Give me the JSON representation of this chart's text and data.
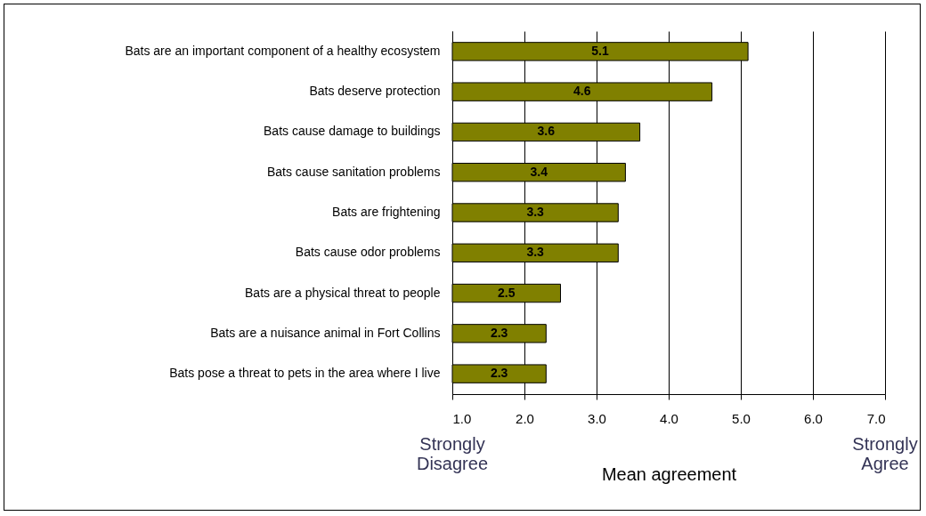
{
  "chart_data": {
    "type": "bar",
    "orientation": "horizontal",
    "xlabel": "Mean agreement",
    "categories": [
      "Bats are an important component of a healthy ecosystem",
      "Bats deserve protection",
      "Bats cause damage to buildings",
      "Bats cause sanitation problems",
      "Bats are frightening",
      "Bats cause odor problems",
      "Bats are a physical threat to people",
      "Bats are a nuisance animal in Fort Collins",
      "Bats pose a threat to pets in the area where I live"
    ],
    "values": [
      5.1,
      4.6,
      3.6,
      3.4,
      3.3,
      3.3,
      2.5,
      2.3,
      2.3
    ],
    "color": "#808000",
    "data_labels": true,
    "grid": "x",
    "xlim": [
      1,
      7
    ],
    "xticks": [
      {
        "value": 1,
        "label": "1.0"
      },
      {
        "value": 2,
        "label": "2.0"
      },
      {
        "value": 3,
        "label": "3.0"
      },
      {
        "value": 4,
        "label": "4.0"
      },
      {
        "value": 5,
        "label": "5.0"
      },
      {
        "value": 6,
        "label": "6.0"
      },
      {
        "value": 7,
        "label": "7.0"
      }
    ],
    "annotations": [
      "Strongly Disagree",
      "Strongly Agree"
    ]
  }
}
